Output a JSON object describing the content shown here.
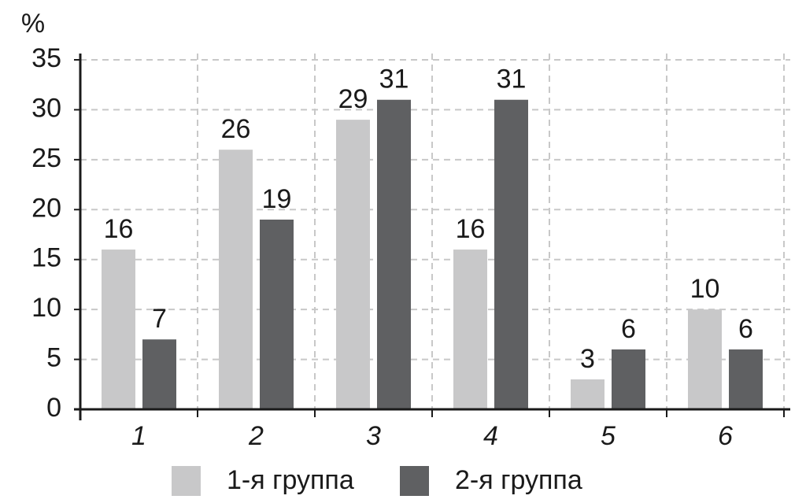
{
  "chart_data": {
    "type": "bar",
    "y_label": "%",
    "categories": [
      "1",
      "2",
      "3",
      "4",
      "5",
      "6"
    ],
    "series": [
      {
        "name": "1-я группа",
        "color": "#c8c8c9",
        "values": [
          16,
          26,
          29,
          16,
          3,
          10
        ]
      },
      {
        "name": "2-я группа",
        "color": "#5f6062",
        "values": [
          7,
          19,
          31,
          31,
          6,
          6
        ]
      }
    ],
    "ylim": [
      0,
      35
    ],
    "yticks": [
      0,
      5,
      10,
      15,
      20,
      25,
      30,
      35
    ],
    "grid": true
  }
}
